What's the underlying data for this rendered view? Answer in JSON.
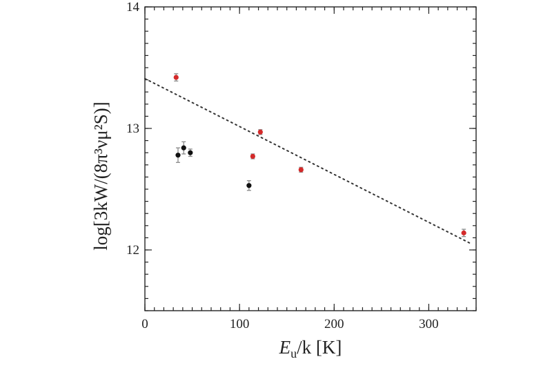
{
  "chart_data": {
    "type": "scatter",
    "xlabel": {
      "main": "E",
      "sub": "u",
      "rest": "/k [K]"
    },
    "ylabel": "log[3kW/(8π³νμ²S)]",
    "xlim": [
      0,
      350
    ],
    "ylim": [
      11.5,
      14
    ],
    "x_ticks": [
      0,
      100,
      200,
      300
    ],
    "y_ticks": [
      12,
      13,
      14
    ],
    "x_minor_step": 10,
    "y_minor_step": 0.1,
    "series": [
      {
        "color": "#d42a2a",
        "points": [
          {
            "x": 33,
            "y": 13.42,
            "err": 0.03
          },
          {
            "x": 114,
            "y": 12.77,
            "err": 0.02
          },
          {
            "x": 122,
            "y": 12.97,
            "err": 0.02
          },
          {
            "x": 165,
            "y": 12.66,
            "err": 0.02
          },
          {
            "x": 337,
            "y": 12.14,
            "err": 0.03
          }
        ]
      },
      {
        "color": "#111111",
        "points": [
          {
            "x": 35,
            "y": 12.78,
            "err": 0.06
          },
          {
            "x": 41,
            "y": 12.84,
            "err": 0.05
          },
          {
            "x": 48,
            "y": 12.8,
            "err": 0.03
          },
          {
            "x": 110,
            "y": 12.53,
            "err": 0.04
          }
        ]
      }
    ],
    "fit_line": {
      "style": "dotted",
      "x": [
        0,
        345
      ],
      "y": [
        13.41,
        12.05
      ]
    },
    "grid": false,
    "legend": "none"
  }
}
